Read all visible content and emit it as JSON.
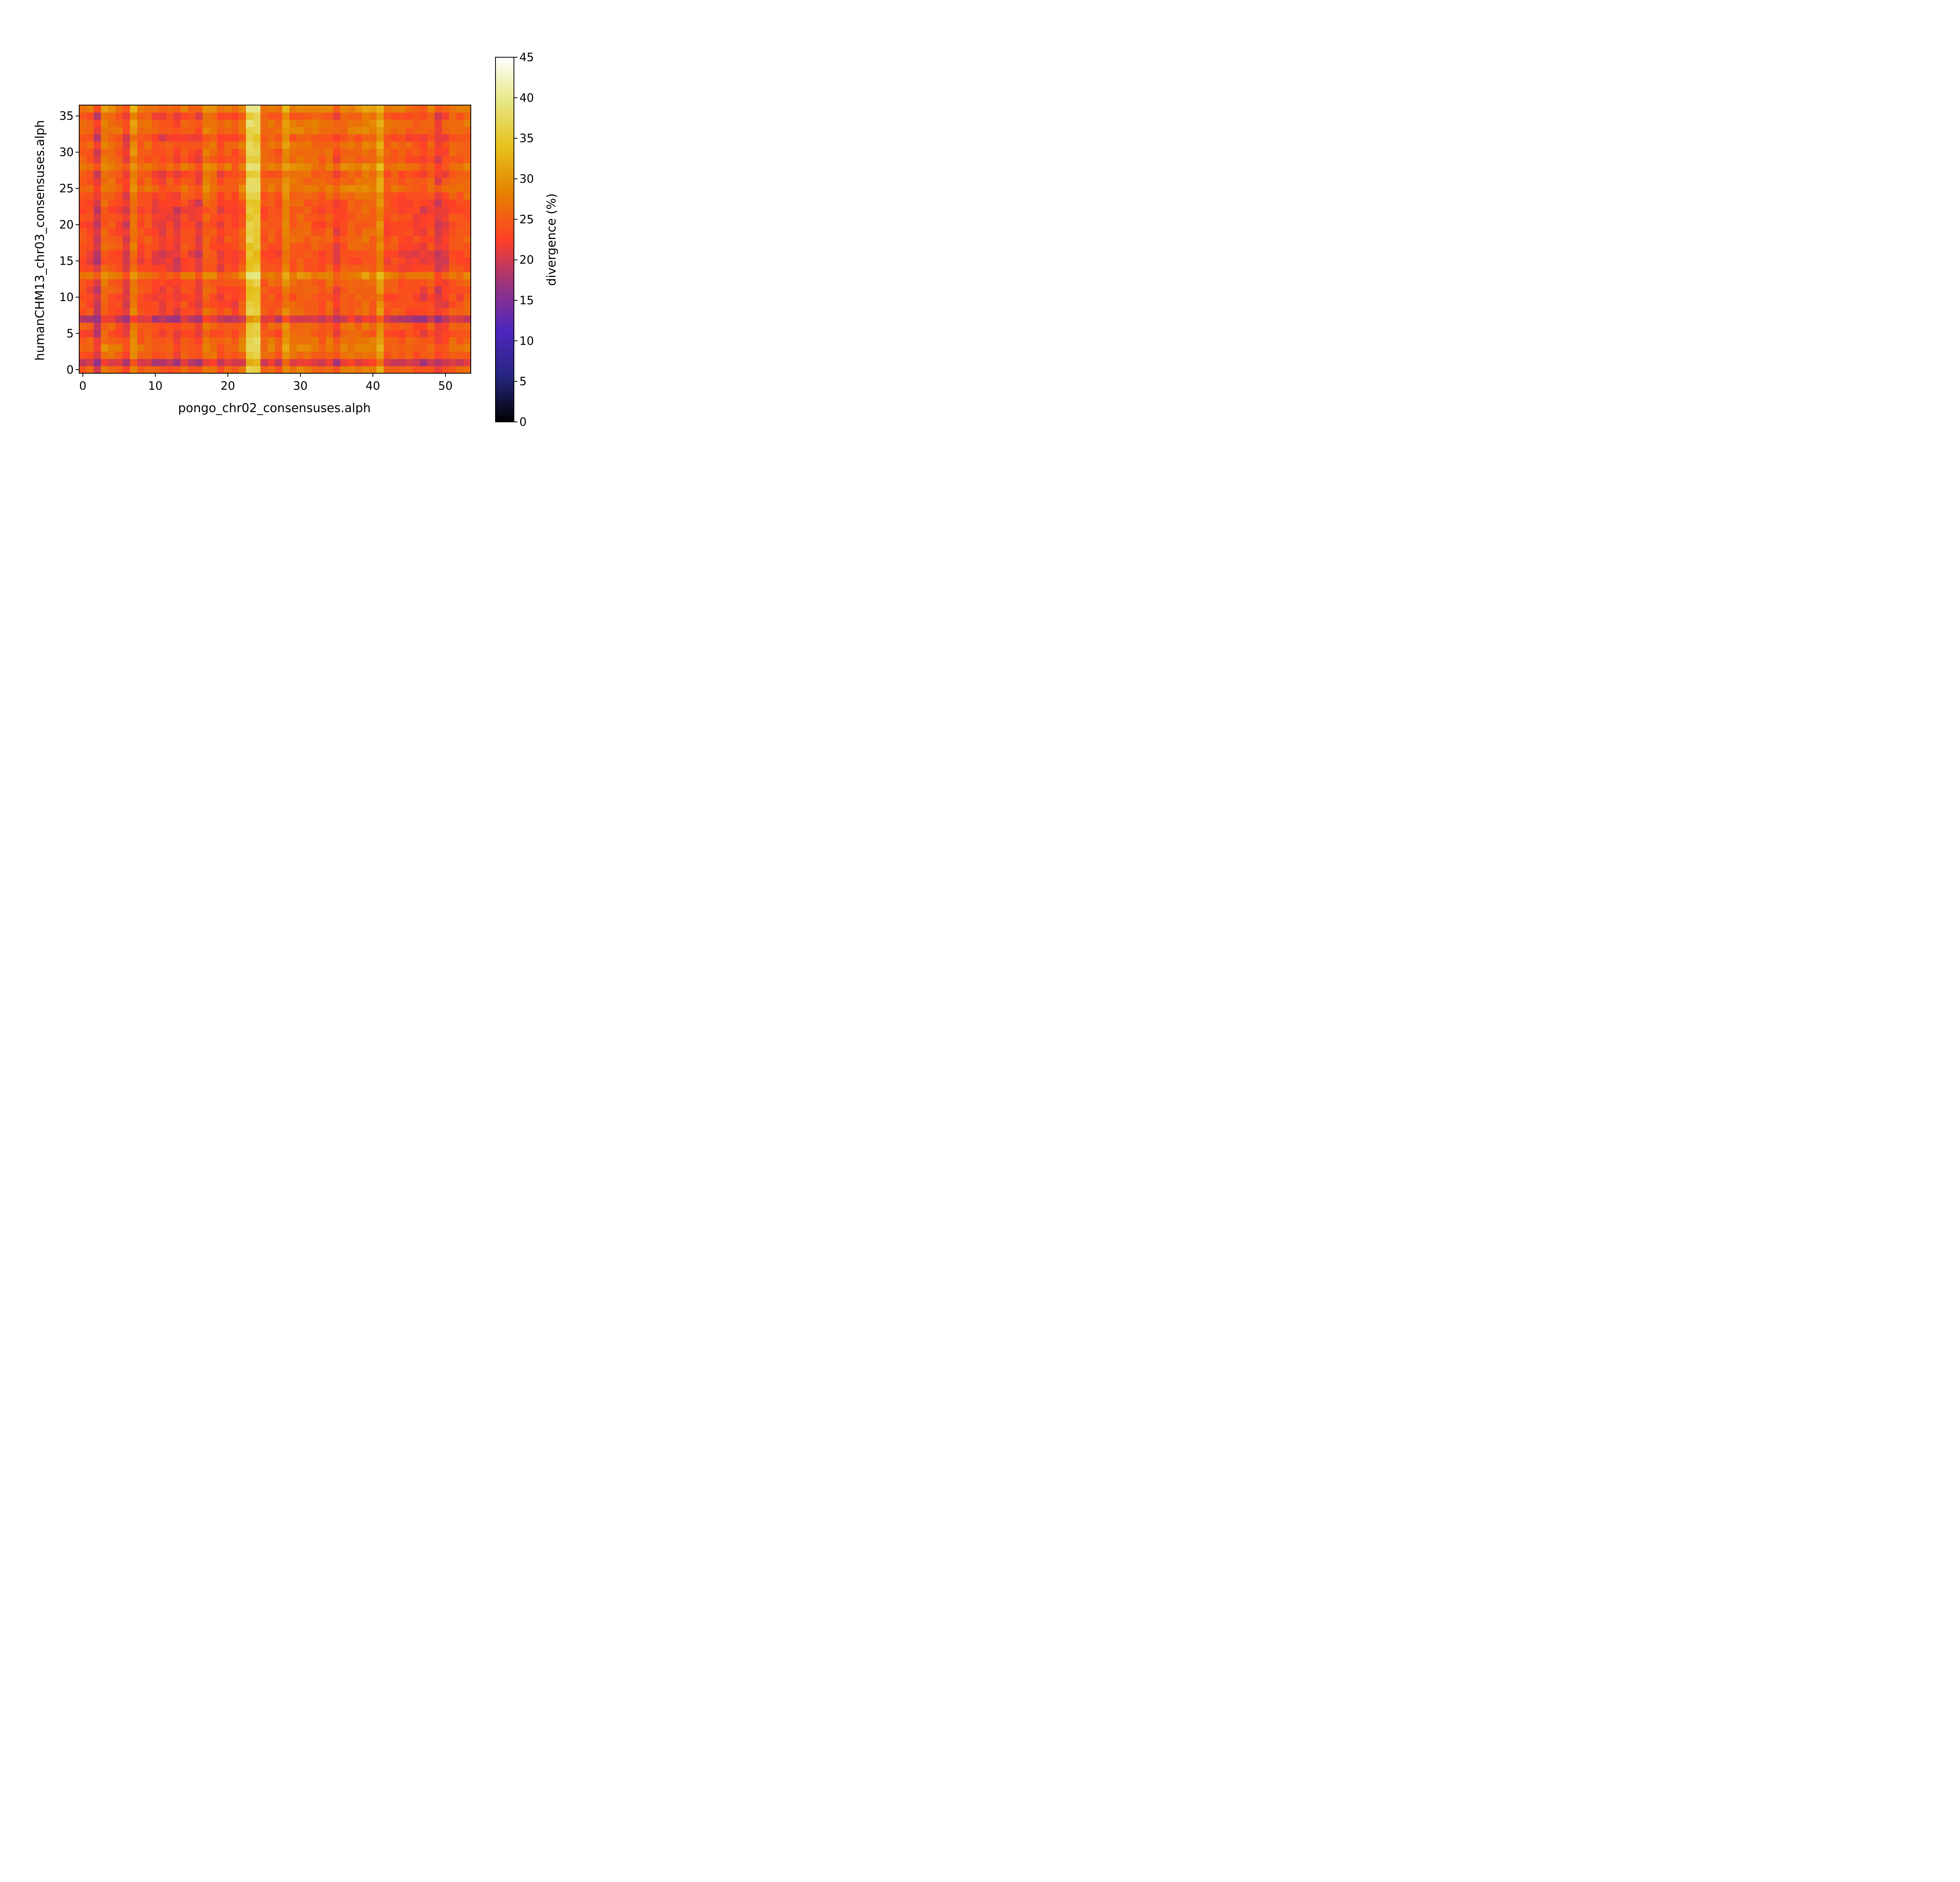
{
  "chart_data": {
    "type": "heatmap",
    "xlabel": "pongo_chr02_consensuses.alph",
    "ylabel": "humanCHM13_chr03_consensuses.alph",
    "x_ticks": [
      0,
      10,
      20,
      30,
      40,
      50
    ],
    "y_ticks": [
      0,
      5,
      10,
      15,
      20,
      25,
      30,
      35
    ],
    "xlim": [
      -0.5,
      53.5
    ],
    "ylim": [
      -0.5,
      36.5
    ],
    "n_cols": 54,
    "n_rows": 37,
    "colormap": "CMRmap",
    "colorbar": {
      "label": "divergence (%)",
      "range": [
        0,
        45
      ],
      "ticks": [
        0,
        5,
        10,
        15,
        20,
        25,
        30,
        35,
        40,
        45
      ]
    },
    "base_divergence": 23,
    "column_offsets": [
      0.5,
      0.0,
      -3.5,
      2.5,
      1.5,
      0.5,
      -2.5,
      4.5,
      0.5,
      1.0,
      -0.5,
      -1.5,
      -0.5,
      -2.0,
      0.5,
      -0.5,
      -2.0,
      2.5,
      1.5,
      -1.0,
      0.5,
      -0.5,
      2.0,
      12.0,
      12.0,
      1.0,
      1.5,
      0.5,
      5.0,
      2.0,
      2.5,
      2.0,
      1.5,
      0.5,
      2.0,
      -1.0,
      1.5,
      2.0,
      2.0,
      3.0,
      2.5,
      6.0,
      0.5,
      1.0,
      0.0,
      0.0,
      -0.5,
      -1.0,
      0.5,
      -2.5,
      -1.0,
      1.0,
      0.5,
      1.5
    ],
    "row_offsets": [
      2.0,
      -3.5,
      1.5,
      3.0,
      2.0,
      0.0,
      1.0,
      -4.0,
      0.5,
      0.0,
      -0.5,
      0.0,
      1.0,
      4.0,
      0.0,
      -1.0,
      -1.0,
      0.0,
      0.5,
      0.0,
      0.0,
      0.0,
      -0.5,
      0.0,
      1.0,
      3.0,
      1.5,
      0.5,
      3.5,
      1.0,
      1.5,
      2.0,
      0.0,
      2.5,
      2.5,
      0.5,
      4.0
    ],
    "noise_amplitude": 1.5
  }
}
